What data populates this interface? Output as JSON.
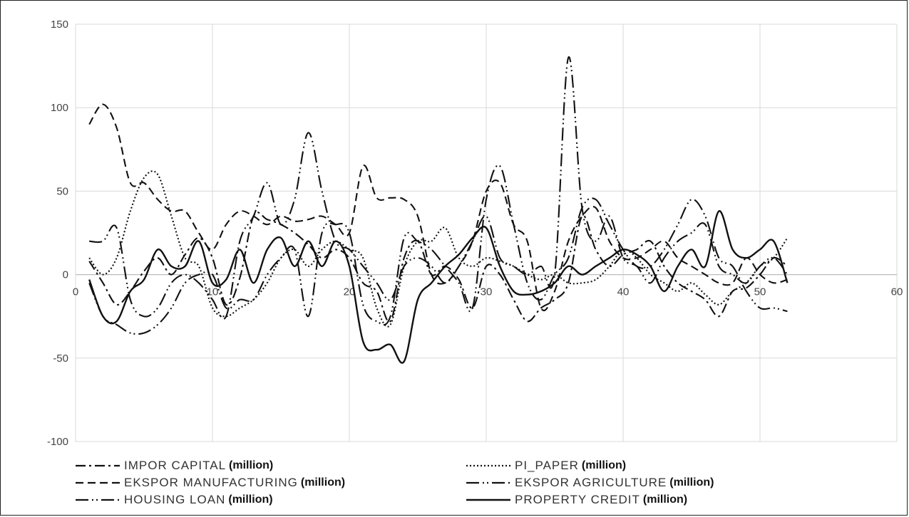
{
  "chart_data": {
    "type": "line",
    "title": "",
    "xlabel": "",
    "ylabel": "",
    "xlim": [
      0,
      60
    ],
    "ylim": [
      -100,
      150
    ],
    "x_ticks": [
      0,
      10,
      20,
      30,
      40,
      50,
      60
    ],
    "y_ticks": [
      -100,
      -50,
      0,
      50,
      100,
      150
    ],
    "x_tick_labels": [
      "0",
      "10",
      "20",
      "30",
      "40",
      "50",
      "60"
    ],
    "y_tick_labels": [
      "-100",
      "-50",
      "0",
      "50",
      "100",
      "150"
    ],
    "grid": true,
    "legend_position": "bottom",
    "legend_unit": "(million)",
    "series": [
      {
        "name": "IMPOR CAPITAL",
        "dash": "dash-dot",
        "x": [
          1,
          2,
          3,
          4,
          5,
          6,
          7,
          8,
          9,
          10,
          11,
          12,
          13,
          14,
          15,
          16,
          17,
          18,
          19,
          20,
          21,
          22,
          23,
          24,
          25,
          26,
          27,
          28,
          29,
          30,
          31,
          32,
          33,
          34,
          35,
          36,
          37,
          38,
          39,
          40,
          41,
          42,
          43,
          44,
          45,
          46,
          47,
          48,
          49,
          50,
          51,
          52
        ],
        "y": [
          8,
          -5,
          -18,
          -10,
          2,
          10,
          0,
          12,
          22,
          10,
          -18,
          -2,
          35,
          33,
          30,
          25,
          18,
          10,
          15,
          10,
          -5,
          -10,
          -28,
          10,
          20,
          0,
          5,
          -3,
          -20,
          5,
          0,
          -15,
          -28,
          -20,
          -15,
          -5,
          35,
          15,
          5,
          12,
          15,
          20,
          5,
          -5,
          -10,
          -15,
          -25,
          -10,
          -8,
          0,
          10,
          5
        ]
      },
      {
        "name": "PI_PAPER",
        "dash": "dot",
        "x": [
          1,
          2,
          3,
          4,
          5,
          6,
          7,
          8,
          9,
          10,
          11,
          12,
          13,
          14,
          15,
          16,
          17,
          18,
          19,
          20,
          21,
          22,
          23,
          24,
          25,
          26,
          27,
          28,
          29,
          30,
          31,
          32,
          33,
          34,
          35,
          36,
          37,
          38,
          39,
          40,
          41,
          42,
          43,
          44,
          45,
          46,
          47,
          48,
          49,
          50,
          51,
          52
        ],
        "y": [
          10,
          0,
          10,
          38,
          58,
          60,
          35,
          10,
          5,
          -20,
          -25,
          -20,
          -15,
          -5,
          10,
          15,
          5,
          15,
          20,
          15,
          10,
          -20,
          -30,
          5,
          20,
          20,
          28,
          10,
          5,
          10,
          8,
          5,
          0,
          -3,
          0,
          -5,
          -5,
          -3,
          5,
          15,
          10,
          0,
          -5,
          -10,
          -5,
          -12,
          -18,
          -10,
          -5,
          5,
          10,
          22
        ]
      },
      {
        "name": "EKSPOR MANUFACTURING",
        "dash": "dash",
        "x": [
          1,
          2,
          3,
          4,
          5,
          6,
          7,
          8,
          9,
          10,
          11,
          12,
          13,
          14,
          15,
          16,
          17,
          18,
          19,
          20,
          21,
          22,
          23,
          24,
          25,
          26,
          27,
          28,
          29,
          30,
          31,
          32,
          33,
          34,
          35,
          36,
          37,
          38,
          39,
          40,
          41,
          42,
          43,
          44,
          45,
          46,
          47,
          48,
          49,
          50,
          51,
          52
        ],
        "y": [
          90,
          102,
          88,
          55,
          55,
          45,
          38,
          38,
          25,
          15,
          30,
          38,
          35,
          30,
          35,
          32,
          33,
          35,
          30,
          25,
          65,
          46,
          46,
          45,
          35,
          0,
          -5,
          5,
          20,
          50,
          55,
          30,
          20,
          -20,
          -10,
          20,
          35,
          40,
          20,
          10,
          10,
          15,
          20,
          10,
          5,
          0,
          -5,
          -5,
          10,
          0,
          -5,
          -3
        ]
      },
      {
        "name": "EKSPOR AGRICULTURE",
        "dash": "long-dash-dot-dot",
        "x": [
          1,
          2,
          3,
          4,
          5,
          6,
          7,
          8,
          9,
          10,
          11,
          12,
          13,
          14,
          15,
          16,
          17,
          18,
          19,
          20,
          21,
          22,
          23,
          24,
          25,
          26,
          27,
          28,
          29,
          30,
          31,
          32,
          33,
          34,
          35,
          36,
          37,
          38,
          39,
          40,
          41,
          42,
          43,
          44,
          45,
          46,
          47,
          48,
          49,
          50,
          51,
          52
        ],
        "y": [
          -5,
          -25,
          -30,
          -35,
          -35,
          -30,
          -20,
          -5,
          0,
          0,
          -20,
          -15,
          -15,
          0,
          10,
          15,
          -25,
          25,
          30,
          25,
          -18,
          -28,
          -25,
          22,
          20,
          15,
          5,
          -5,
          -20,
          45,
          65,
          30,
          -5,
          -15,
          0,
          10,
          40,
          45,
          30,
          15,
          5,
          5,
          15,
          30,
          45,
          35,
          10,
          5,
          -10,
          -20,
          -20,
          -22
        ]
      },
      {
        "name": "HOUSING LOAN",
        "dash": "long-dash-dot-dot",
        "x": [
          1,
          2,
          3,
          4,
          5,
          6,
          7,
          8,
          9,
          10,
          11,
          12,
          13,
          14,
          15,
          16,
          17,
          18,
          19,
          20,
          21,
          22,
          23,
          24,
          25,
          26,
          27,
          28,
          29,
          30,
          31,
          32,
          33,
          34,
          35,
          36,
          37,
          38,
          39,
          40,
          41,
          42,
          43,
          44,
          45,
          46,
          47,
          48,
          49,
          50,
          51,
          52
        ],
        "y": [
          20,
          20,
          28,
          -15,
          -25,
          -20,
          -5,
          0,
          -5,
          -15,
          -25,
          20,
          35,
          55,
          30,
          45,
          85,
          50,
          20,
          15,
          5,
          -5,
          -15,
          5,
          10,
          5,
          -5,
          5,
          20,
          35,
          10,
          5,
          0,
          5,
          0,
          130,
          40,
          20,
          35,
          10,
          5,
          -5,
          10,
          20,
          25,
          30,
          5,
          0,
          -5,
          5,
          10,
          0
        ]
      },
      {
        "name": "PROPERTY CREDIT",
        "dash": "solid",
        "x": [
          1,
          2,
          3,
          4,
          5,
          6,
          7,
          8,
          9,
          10,
          11,
          12,
          13,
          14,
          15,
          16,
          17,
          18,
          19,
          20,
          21,
          22,
          23,
          24,
          25,
          26,
          27,
          28,
          29,
          30,
          31,
          32,
          33,
          34,
          35,
          36,
          37,
          38,
          39,
          40,
          41,
          42,
          43,
          44,
          45,
          46,
          47,
          48,
          49,
          50,
          51,
          52
        ],
        "y": [
          -3,
          -25,
          -28,
          -10,
          -3,
          15,
          5,
          5,
          20,
          -5,
          -3,
          15,
          -5,
          15,
          22,
          5,
          20,
          5,
          20,
          5,
          -40,
          -45,
          -42,
          -52,
          -15,
          -5,
          5,
          12,
          22,
          28,
          5,
          -10,
          -12,
          -10,
          -5,
          5,
          0,
          5,
          10,
          15,
          12,
          5,
          -10,
          5,
          15,
          5,
          38,
          15,
          10,
          15,
          20,
          -5
        ]
      }
    ]
  }
}
